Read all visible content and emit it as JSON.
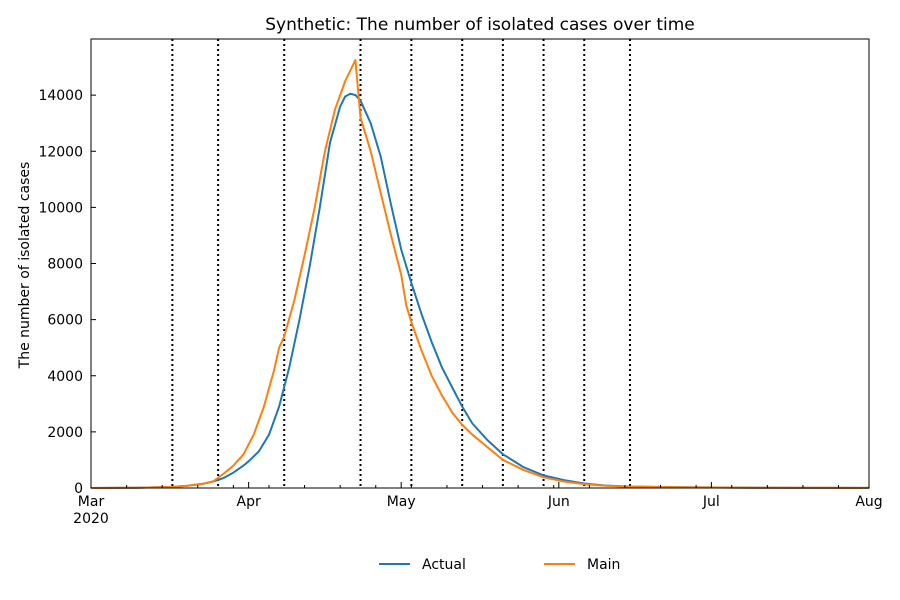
{
  "chart_data": {
    "type": "line",
    "title": "Synthetic: The number of isolated cases over time",
    "xlabel": "",
    "ylabel": "The number of isolated cases",
    "x_tick_labels": [
      {
        "date": "2020-03-01",
        "label": "Mar",
        "sublabel": "2020"
      },
      {
        "date": "2020-04-01",
        "label": "Apr"
      },
      {
        "date": "2020-05-01",
        "label": "May"
      },
      {
        "date": "2020-06-01",
        "label": "Jun"
      },
      {
        "date": "2020-07-01",
        "label": "Jul"
      },
      {
        "date": "2020-08-01",
        "label": "Aug"
      }
    ],
    "y_ticks": [
      0,
      2000,
      4000,
      6000,
      8000,
      10000,
      12000,
      14000
    ],
    "xlim": [
      "2020-03-01",
      "2020-08-01"
    ],
    "ylim": [
      0,
      16000
    ],
    "grid": false,
    "legend_position": "bottom-center",
    "vertical_lines": [
      "2020-03-17",
      "2020-03-26",
      "2020-04-08",
      "2020-04-23",
      "2020-05-03",
      "2020-05-13",
      "2020-05-21",
      "2020-05-29",
      "2020-06-06",
      "2020-06-15"
    ],
    "series": [
      {
        "name": "Actual",
        "color": "#1f77b4",
        "points": [
          [
            "2020-03-01",
            0
          ],
          [
            "2020-03-10",
            10
          ],
          [
            "2020-03-17",
            40
          ],
          [
            "2020-03-20",
            80
          ],
          [
            "2020-03-23",
            150
          ],
          [
            "2020-03-25",
            230
          ],
          [
            "2020-03-27",
            350
          ],
          [
            "2020-03-29",
            550
          ],
          [
            "2020-03-31",
            800
          ],
          [
            "2020-04-01",
            950
          ],
          [
            "2020-04-03",
            1300
          ],
          [
            "2020-04-05",
            1900
          ],
          [
            "2020-04-07",
            2900
          ],
          [
            "2020-04-09",
            4300
          ],
          [
            "2020-04-11",
            6000
          ],
          [
            "2020-04-13",
            7900
          ],
          [
            "2020-04-15",
            10000
          ],
          [
            "2020-04-17",
            12300
          ],
          [
            "2020-04-19",
            13600
          ],
          [
            "2020-04-20",
            13950
          ],
          [
            "2020-04-21",
            14050
          ],
          [
            "2020-04-22",
            14000
          ],
          [
            "2020-04-23",
            13800
          ],
          [
            "2020-04-25",
            13000
          ],
          [
            "2020-04-27",
            11800
          ],
          [
            "2020-04-29",
            10100
          ],
          [
            "2020-05-01",
            8500
          ],
          [
            "2020-05-03",
            7300
          ],
          [
            "2020-05-05",
            6200
          ],
          [
            "2020-05-07",
            5200
          ],
          [
            "2020-05-09",
            4300
          ],
          [
            "2020-05-11",
            3600
          ],
          [
            "2020-05-13",
            2900
          ],
          [
            "2020-05-15",
            2300
          ],
          [
            "2020-05-18",
            1700
          ],
          [
            "2020-05-21",
            1200
          ],
          [
            "2020-05-25",
            750
          ],
          [
            "2020-05-29",
            450
          ],
          [
            "2020-06-02",
            280
          ],
          [
            "2020-06-06",
            160
          ],
          [
            "2020-06-10",
            90
          ],
          [
            "2020-06-15",
            50
          ],
          [
            "2020-06-25",
            25
          ],
          [
            "2020-07-10",
            10
          ],
          [
            "2020-08-01",
            5
          ]
        ]
      },
      {
        "name": "Main",
        "color": "#ff7f0e",
        "points": [
          [
            "2020-03-01",
            0
          ],
          [
            "2020-03-10",
            10
          ],
          [
            "2020-03-17",
            40
          ],
          [
            "2020-03-20",
            80
          ],
          [
            "2020-03-23",
            150
          ],
          [
            "2020-03-25",
            230
          ],
          [
            "2020-03-27",
            500
          ],
          [
            "2020-03-29",
            800
          ],
          [
            "2020-03-31",
            1200
          ],
          [
            "2020-04-02",
            1900
          ],
          [
            "2020-04-04",
            2900
          ],
          [
            "2020-04-06",
            4200
          ],
          [
            "2020-04-07",
            5000
          ],
          [
            "2020-04-08",
            5400
          ],
          [
            "2020-04-10",
            6700
          ],
          [
            "2020-04-12",
            8300
          ],
          [
            "2020-04-14",
            10000
          ],
          [
            "2020-04-16",
            12000
          ],
          [
            "2020-04-18",
            13500
          ],
          [
            "2020-04-20",
            14500
          ],
          [
            "2020-04-22",
            15250
          ],
          [
            "2020-04-23",
            13200
          ],
          [
            "2020-04-25",
            12000
          ],
          [
            "2020-04-27",
            10500
          ],
          [
            "2020-04-29",
            9000
          ],
          [
            "2020-05-01",
            7600
          ],
          [
            "2020-05-02",
            6500
          ],
          [
            "2020-05-03",
            5900
          ],
          [
            "2020-05-05",
            4900
          ],
          [
            "2020-05-07",
            4000
          ],
          [
            "2020-05-09",
            3300
          ],
          [
            "2020-05-11",
            2700
          ],
          [
            "2020-05-13",
            2250
          ],
          [
            "2020-05-15",
            1900
          ],
          [
            "2020-05-18",
            1450
          ],
          [
            "2020-05-21",
            1000
          ],
          [
            "2020-05-25",
            650
          ],
          [
            "2020-05-29",
            380
          ],
          [
            "2020-06-02",
            230
          ],
          [
            "2020-06-06",
            140
          ],
          [
            "2020-06-10",
            80
          ],
          [
            "2020-06-15",
            50
          ],
          [
            "2020-06-25",
            25
          ],
          [
            "2020-07-10",
            10
          ],
          [
            "2020-08-01",
            5
          ]
        ]
      }
    ]
  }
}
